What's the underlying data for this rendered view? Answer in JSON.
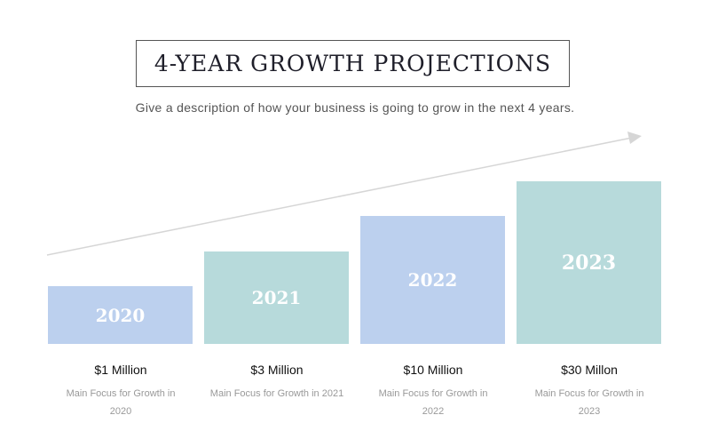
{
  "title": "4-YEAR GROWTH PROJECTIONS",
  "subtitle": "Give a description of how your business is going to grow in the next 4 years.",
  "colors": {
    "blue": "#bcd0ee",
    "teal": "#b7dadb",
    "arrow": "#d6d6d6"
  },
  "items": [
    {
      "year": "2020",
      "amount": "$1 Million",
      "desc": "Main Focus for Growth in 2020"
    },
    {
      "year": "2021",
      "amount": "$3 Million",
      "desc": "Main Focus for Growth in 2021"
    },
    {
      "year": "2022",
      "amount": "$10 Million",
      "desc": "Main Focus for Growth in 2022"
    },
    {
      "year": "2023",
      "amount": "$30 Millon",
      "desc": "Main Focus for Growth in 2023"
    }
  ]
}
